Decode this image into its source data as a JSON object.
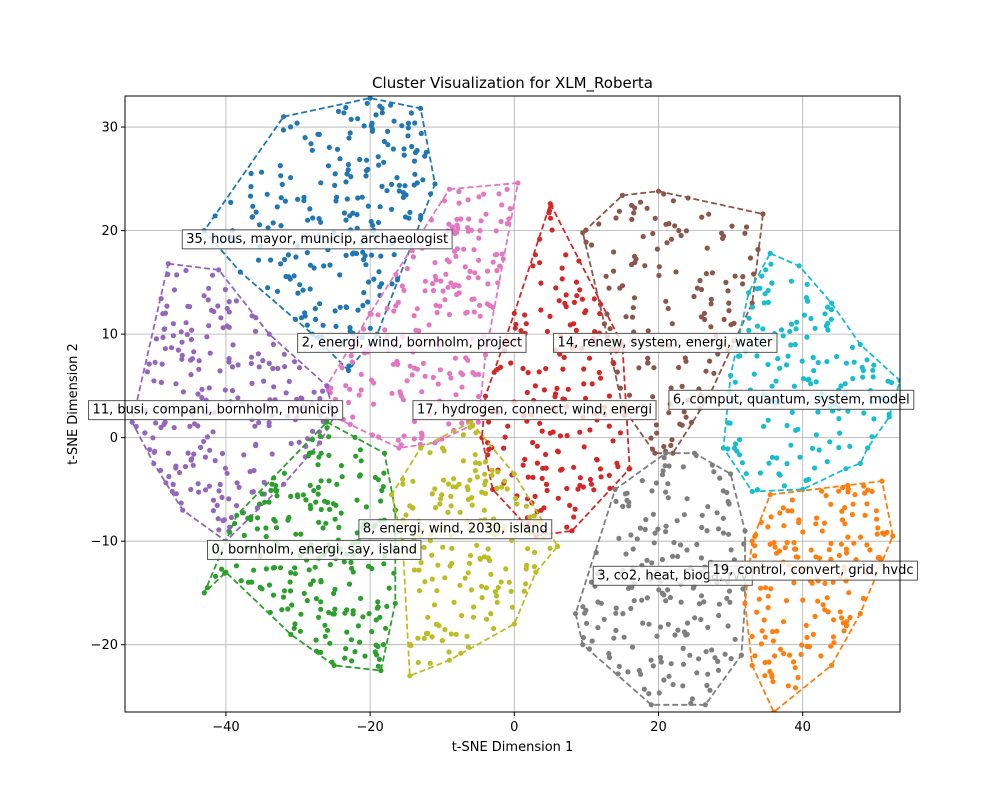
{
  "chart_data": {
    "type": "scatter",
    "title": "Cluster Visualization for XLM_Roberta",
    "xlabel": "t-SNE Dimension 1",
    "ylabel": "t-SNE Dimension 2",
    "xlim": [
      -54,
      53.5
    ],
    "ylim": [
      -26.5,
      33
    ],
    "xticks": [
      -40,
      -20,
      0,
      20,
      40
    ],
    "yticks": [
      -20,
      -10,
      0,
      10,
      20,
      30
    ],
    "xtick_labels": [
      "−40",
      "−20",
      "0",
      "20",
      "40"
    ],
    "ytick_labels": [
      "−20",
      "−10",
      "0",
      "10",
      "20",
      "30"
    ],
    "grid": true,
    "clusters": [
      {
        "label": "35, hous, mayor, municip, archaeologist",
        "color": "#1f77b4",
        "label_pos": [
          -45.5,
          19.3
        ],
        "count": 220,
        "hull": [
          [
            -32,
            31
          ],
          [
            -20,
            32.8
          ],
          [
            -13,
            31.8
          ],
          [
            -11,
            24.5
          ],
          [
            -19,
            10
          ],
          [
            -23,
            6.5
          ],
          [
            -28,
            10
          ],
          [
            -38,
            16
          ],
          [
            -43,
            20
          ]
        ]
      },
      {
        "label": "2, energi, wind, bornholm, project",
        "color": "#e377c2",
        "label_pos": [
          -29.5,
          9.3
        ],
        "count": 200,
        "hull": [
          [
            -9,
            24
          ],
          [
            0.5,
            24.6
          ],
          [
            -4,
            8
          ],
          [
            -5,
            1.5
          ],
          [
            -11,
            -0.5
          ],
          [
            -16,
            -1
          ],
          [
            -25,
            2
          ],
          [
            -26,
            5
          ],
          [
            -20,
            12
          ]
        ]
      },
      {
        "label": "11, busi, compani, bornholm, municip",
        "color": "#9467bd",
        "label_pos": [
          -58.5,
          2.8
        ],
        "count": 210,
        "hull": [
          [
            -48,
            16.8
          ],
          [
            -41,
            16.2
          ],
          [
            -34,
            10
          ],
          [
            -26,
            5
          ],
          [
            -25,
            2
          ],
          [
            -27,
            -0.5
          ],
          [
            -32,
            -4.5
          ],
          [
            -40,
            -10
          ],
          [
            -46,
            -7
          ],
          [
            -50,
            -2.5
          ],
          [
            -53,
            1.5
          ]
        ]
      },
      {
        "label": "17, hydrogen, connect, wind, energi",
        "color": "#d62728",
        "label_pos": [
          -13.5,
          2.8
        ],
        "count": 180,
        "hull": [
          [
            5,
            22.6
          ],
          [
            15,
            9
          ],
          [
            16,
            -3
          ],
          [
            8,
            -9
          ],
          [
            3,
            -9.5
          ],
          [
            -3,
            -5
          ],
          [
            -4.5,
            0
          ],
          [
            -4,
            4
          ],
          [
            0,
            12
          ]
        ]
      },
      {
        "label": "14, renew, system, energi, water",
        "color": "#8c564b",
        "label_pos": [
          6,
          9.3
        ],
        "count": 140,
        "hull": [
          [
            15,
            23.4
          ],
          [
            20,
            23.8
          ],
          [
            34.5,
            21.6
          ],
          [
            33,
            13
          ],
          [
            27,
            4
          ],
          [
            22,
            -1.5
          ],
          [
            19.5,
            -1.5
          ],
          [
            15,
            3
          ],
          [
            12.5,
            11
          ],
          [
            9.5,
            19.8
          ]
        ]
      },
      {
        "label": "6, comput, quantum, system, model",
        "color": "#17becf",
        "label_pos": [
          22,
          3.8
        ],
        "count": 150,
        "hull": [
          [
            35.5,
            17.8
          ],
          [
            39.5,
            16.6
          ],
          [
            44,
            13
          ],
          [
            48,
            9
          ],
          [
            53.5,
            5.5
          ],
          [
            52,
            2
          ],
          [
            49,
            -1
          ],
          [
            48,
            -2.5
          ],
          [
            46,
            -3
          ],
          [
            40,
            -5
          ],
          [
            33,
            -5.2
          ],
          [
            29,
            -1
          ],
          [
            30,
            6
          ],
          [
            32.5,
            14
          ]
        ]
      },
      {
        "label": "0, bornholm, energi, say, island",
        "color": "#2ca02c",
        "label_pos": [
          -42,
          -10.7
        ],
        "count": 220,
        "hull": [
          [
            -26,
            1.5
          ],
          [
            -18,
            -1.5
          ],
          [
            -16.5,
            -7
          ],
          [
            -16.5,
            -16
          ],
          [
            -18.5,
            -22.5
          ],
          [
            -25,
            -22
          ],
          [
            -31,
            -19
          ],
          [
            -40,
            -13
          ],
          [
            -43,
            -15
          ],
          [
            -38.5,
            -7.5
          ]
        ]
      },
      {
        "label": "8, energi, wind, 2030, island",
        "color": "#bcbd22",
        "label_pos": [
          -21,
          -8.7
        ],
        "count": 170,
        "hull": [
          [
            -6,
            1.5
          ],
          [
            0,
            -3.5
          ],
          [
            6,
            -10.5
          ],
          [
            3,
            -13
          ],
          [
            0,
            -18
          ],
          [
            -9,
            -21.5
          ],
          [
            -14.5,
            -23
          ],
          [
            -15.5,
            -10
          ],
          [
            -17,
            -5.5
          ],
          [
            -13,
            -1
          ]
        ]
      },
      {
        "label": "3, co2, heat, bioga, rvv",
        "color": "#7f7f7f",
        "label_pos": [
          11.5,
          -13.2
        ],
        "count": 190,
        "hull": [
          [
            21,
            -1.5
          ],
          [
            25,
            -1.5
          ],
          [
            30,
            -3.5
          ],
          [
            32,
            -9
          ],
          [
            32,
            -16
          ],
          [
            31.5,
            -21
          ],
          [
            26.5,
            -25.8
          ],
          [
            19,
            -25.8
          ],
          [
            9.5,
            -20
          ],
          [
            8.5,
            -17
          ],
          [
            14,
            -5
          ]
        ]
      },
      {
        "label": "19, control, convert, grid, hvdc",
        "color": "#ff7f0e",
        "label_pos": [
          27.5,
          -12.7
        ],
        "count": 160,
        "hull": [
          [
            35.5,
            -5.5
          ],
          [
            51,
            -4.2
          ],
          [
            52.5,
            -9.5
          ],
          [
            48,
            -17
          ],
          [
            44,
            -22
          ],
          [
            36,
            -26.5
          ],
          [
            33,
            -22
          ],
          [
            32,
            -16
          ],
          [
            33,
            -10
          ]
        ]
      }
    ]
  }
}
